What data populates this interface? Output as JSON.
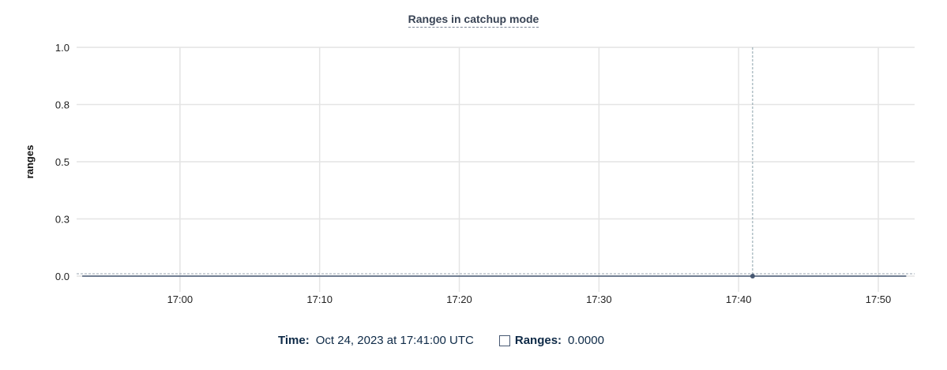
{
  "chart_data": {
    "type": "line",
    "title": "Ranges in catchup mode",
    "ylabel": "ranges",
    "xlabel": "",
    "ylim": [
      0,
      1
    ],
    "yticks": [
      0,
      0.25,
      0.5,
      0.75,
      1.0
    ],
    "ytick_labels": [
      "0.0",
      "0.3",
      "0.5",
      "0.8",
      "1.0"
    ],
    "xlim": [
      "16:52.6",
      "17:52.6"
    ],
    "xticks": [
      "17:00",
      "17:10",
      "17:20",
      "17:30",
      "17:40",
      "17:50"
    ],
    "grid": true,
    "series": [
      {
        "name": "Ranges",
        "color": "#475872",
        "x": [
          "16:53",
          "16:54",
          "16:55",
          "16:56",
          "16:57",
          "16:58",
          "16:59",
          "17:00",
          "17:01",
          "17:02",
          "17:03",
          "17:04",
          "17:05",
          "17:06",
          "17:07",
          "17:08",
          "17:09",
          "17:10",
          "17:11",
          "17:12",
          "17:13",
          "17:14",
          "17:15",
          "17:16",
          "17:17",
          "17:18",
          "17:19",
          "17:20",
          "17:21",
          "17:22",
          "17:23",
          "17:24",
          "17:25",
          "17:26",
          "17:27",
          "17:28",
          "17:29",
          "17:30",
          "17:31",
          "17:32",
          "17:33",
          "17:34",
          "17:35",
          "17:36",
          "17:37",
          "17:38",
          "17:39",
          "17:40",
          "17:41",
          "17:42",
          "17:43",
          "17:44",
          "17:45",
          "17:46",
          "17:47",
          "17:48",
          "17:49",
          "17:50",
          "17:51",
          "17:52"
        ],
        "values": [
          0,
          0,
          0,
          0,
          0,
          0,
          0,
          0,
          0,
          0,
          0,
          0,
          0,
          0,
          0,
          0,
          0,
          0,
          0,
          0,
          0,
          0,
          0,
          0,
          0,
          0,
          0,
          0,
          0,
          0,
          0,
          0,
          0,
          0,
          0,
          0,
          0,
          0,
          0,
          0,
          0,
          0,
          0,
          0,
          0,
          0,
          0,
          0,
          0,
          0,
          0,
          0,
          0,
          0,
          0,
          0,
          0,
          0,
          0,
          0
        ]
      }
    ],
    "hover": {
      "x": "17:41",
      "value": 0
    }
  },
  "legend": {
    "time_label": "Time:",
    "time_value": "Oct 24, 2023 at 17:41:00 UTC",
    "series_label": "Ranges:",
    "series_value": "0.0000"
  }
}
